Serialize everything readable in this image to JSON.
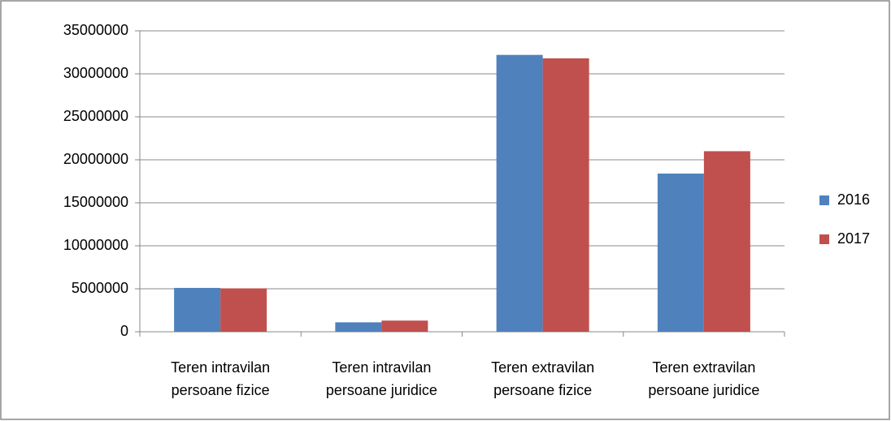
{
  "chart_data": {
    "type": "bar",
    "categories": [
      "Teren intravilan persoane fizice",
      "Teren intravilan persoane juridice",
      "Teren extravilan persoane fizice",
      "Teren extravilan persoane juridice"
    ],
    "series": [
      {
        "name": "2016",
        "color": "#4f81bd",
        "values": [
          5100000,
          1100000,
          32200000,
          18400000
        ]
      },
      {
        "name": "2017",
        "color": "#c0504d",
        "values": [
          5050000,
          1300000,
          31800000,
          21000000
        ]
      }
    ],
    "ylim": [
      0,
      35000000
    ],
    "yticks": [
      0,
      5000000,
      10000000,
      15000000,
      20000000,
      25000000,
      30000000,
      35000000
    ],
    "grid": true,
    "legend": "right"
  }
}
